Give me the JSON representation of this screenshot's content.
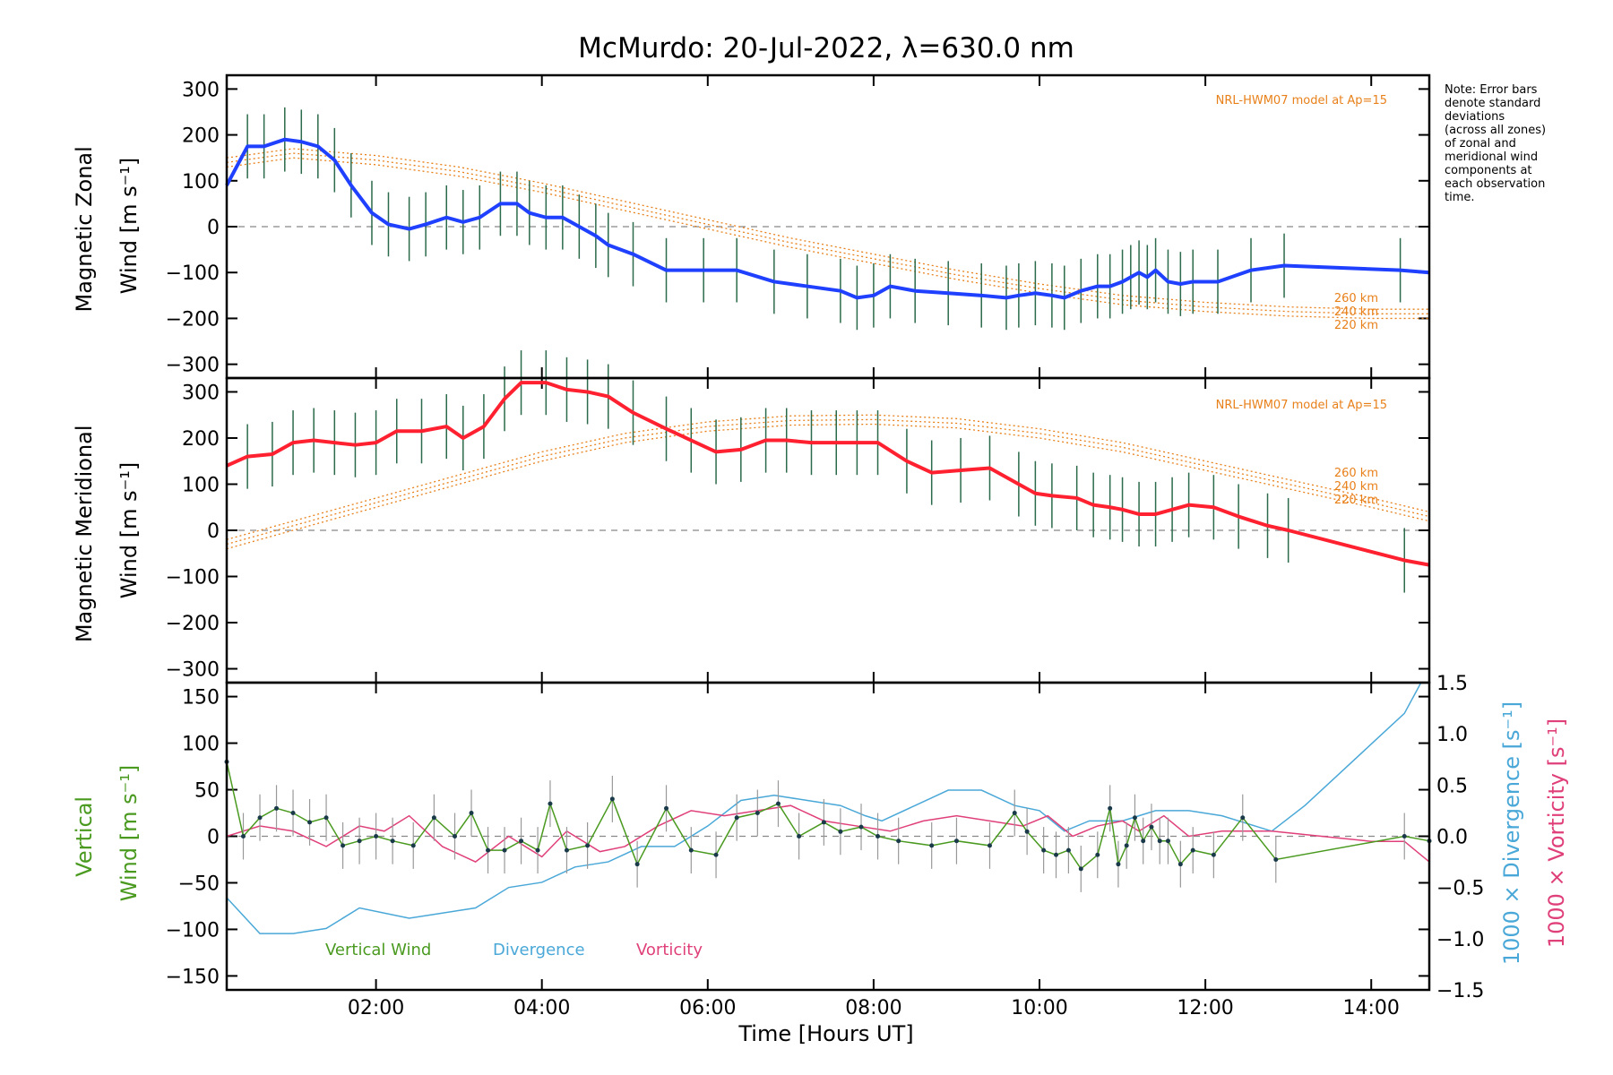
{
  "figure": {
    "title": "McMurdo: 20-Jul-2022, λ=630.0 nm",
    "note_lines": [
      "Note: Error bars",
      "denote standard",
      "deviations",
      "(across all zones)",
      "of zonal and",
      "meridional wind",
      "components at",
      "each observation",
      "time."
    ],
    "model_label": "NRL-HWM07 model at Ap=15",
    "altitudes": [
      "260 km",
      "240 km",
      "220 km"
    ],
    "xlabel": "Time [Hours UT]"
  },
  "chart_data": [
    {
      "type": "line",
      "panel": "zonal",
      "ylabel_lines": [
        "Magnetic Zonal",
        "Wind [m s⁻¹]"
      ],
      "xlim": [
        0.2,
        14.7
      ],
      "ylim": [
        -330,
        330
      ],
      "yticks": [
        300,
        200,
        100,
        0,
        -100,
        -200,
        -300
      ],
      "xticks": [
        2,
        4,
        6,
        8,
        10,
        12,
        14
      ],
      "xtick_labels": [
        "02:00",
        "04:00",
        "06:00",
        "08:00",
        "10:00",
        "12:00",
        "14:00"
      ],
      "zero_line": true,
      "colors": {
        "line": "#2040ff",
        "model": "#e8801a"
      },
      "series": [
        {
          "x": [
            0.2,
            0.45,
            0.65,
            0.9,
            1.1,
            1.3,
            1.5,
            1.7,
            1.95,
            2.15,
            2.4,
            2.6,
            2.85,
            3.05,
            3.25,
            3.5,
            3.7,
            3.85,
            4.05,
            4.25,
            4.45,
            4.65,
            4.8,
            5.1,
            5.5,
            5.95,
            6.35,
            6.8,
            7.2,
            7.6,
            7.8,
            8.0,
            8.2,
            8.5,
            8.9,
            9.3,
            9.6,
            9.75,
            9.95,
            10.15,
            10.3,
            10.5,
            10.7,
            10.85,
            11.0,
            11.1,
            11.2,
            11.3,
            11.4,
            11.55,
            11.7,
            11.85,
            12.15,
            12.55,
            12.95,
            14.35,
            14.7
          ],
          "y": [
            90,
            175,
            175,
            190,
            185,
            175,
            145,
            90,
            30,
            5,
            -5,
            5,
            20,
            10,
            20,
            50,
            50,
            30,
            20,
            20,
            0,
            -20,
            -40,
            -60,
            -95,
            -95,
            -95,
            -120,
            -130,
            -140,
            -155,
            -150,
            -130,
            -140,
            -145,
            -150,
            -155,
            -150,
            -145,
            -150,
            -155,
            -140,
            -130,
            -130,
            -120,
            -110,
            -100,
            -110,
            -95,
            -120,
            -125,
            -120,
            -120,
            -95,
            -85,
            -95,
            -100
          ]
        }
      ],
      "model": {
        "x": [
          0.2,
          1,
          2,
          3,
          4,
          5,
          6,
          7,
          8,
          9,
          10,
          11,
          12,
          13,
          14,
          14.7
        ],
        "y": [
          140,
          160,
          145,
          120,
          85,
          45,
          5,
          -35,
          -70,
          -105,
          -135,
          -160,
          -175,
          -185,
          -190,
          -190
        ]
      }
    },
    {
      "type": "line",
      "panel": "meridional",
      "ylabel_lines": [
        "Magnetic Meridional",
        "Wind [m s⁻¹]"
      ],
      "xlim": [
        0.2,
        14.7
      ],
      "ylim": [
        -330,
        330
      ],
      "yticks": [
        300,
        200,
        100,
        0,
        -100,
        -200,
        -300
      ],
      "zero_line": true,
      "colors": {
        "line": "#ff2030",
        "model": "#e8801a"
      },
      "series": [
        {
          "x": [
            0.2,
            0.45,
            0.75,
            1.0,
            1.25,
            1.5,
            1.75,
            2.0,
            2.25,
            2.55,
            2.85,
            3.05,
            3.3,
            3.55,
            3.75,
            4.05,
            4.3,
            4.55,
            4.8,
            5.1,
            5.5,
            5.8,
            6.1,
            6.4,
            6.7,
            6.95,
            7.25,
            7.55,
            7.8,
            8.05,
            8.4,
            8.7,
            9.05,
            9.4,
            9.75,
            9.95,
            10.15,
            10.45,
            10.65,
            10.85,
            11.0,
            11.2,
            11.4,
            11.6,
            11.8,
            12.1,
            12.4,
            12.75,
            13.0,
            14.4,
            14.7
          ],
          "y": [
            140,
            160,
            165,
            190,
            195,
            190,
            185,
            190,
            215,
            215,
            225,
            200,
            225,
            285,
            320,
            320,
            305,
            300,
            290,
            255,
            220,
            195,
            170,
            175,
            195,
            195,
            190,
            190,
            190,
            190,
            150,
            125,
            130,
            135,
            100,
            80,
            75,
            70,
            55,
            50,
            45,
            35,
            35,
            45,
            55,
            50,
            30,
            10,
            0,
            -65,
            -75
          ]
        }
      ],
      "model": {
        "x": [
          0.2,
          1,
          2,
          3,
          4,
          5,
          6,
          7,
          8,
          9,
          10,
          11,
          12,
          13,
          14,
          14.7
        ],
        "y": [
          -30,
          10,
          60,
          110,
          160,
          200,
          225,
          238,
          240,
          232,
          210,
          180,
          140,
          100,
          60,
          30
        ]
      }
    },
    {
      "type": "line",
      "panel": "vertical",
      "ylabel_lines": [
        "Vertical",
        "Wind [m s⁻¹]"
      ],
      "right_ylabels": [
        "1000 × Divergence [s⁻¹]",
        "1000 × Vorticity [s⁻¹]"
      ],
      "xlim": [
        0.2,
        14.7
      ],
      "ylim": [
        -165,
        165
      ],
      "yticks": [
        150,
        100,
        50,
        0,
        -50,
        -100,
        -150
      ],
      "right_ylim": [
        -1.5,
        1.5
      ],
      "right_yticks": [
        1.5,
        1.0,
        0.5,
        0.0,
        -0.5,
        -1.0,
        -1.5
      ],
      "right_ytick_labels": [
        "1.5",
        "1.0",
        "0.5",
        "0.0",
        "−0.5",
        "−1.0",
        "−1.5"
      ],
      "zero_line": true,
      "legend": [
        "Vertical Wind",
        "Divergence",
        "Vorticity"
      ],
      "colors": {
        "vertical": "#4a9a20",
        "divergence": "#4aa8d8",
        "vorticity": "#e0407a"
      },
      "series": [
        {
          "name": "Vertical Wind",
          "axis": "left",
          "x": [
            0.2,
            0.4,
            0.6,
            0.8,
            1.0,
            1.2,
            1.4,
            1.6,
            1.8,
            2.0,
            2.2,
            2.45,
            2.7,
            2.95,
            3.15,
            3.35,
            3.55,
            3.75,
            3.95,
            4.1,
            4.3,
            4.55,
            4.85,
            5.15,
            5.5,
            5.8,
            6.1,
            6.35,
            6.6,
            6.85,
            7.1,
            7.4,
            7.6,
            7.85,
            8.05,
            8.3,
            8.7,
            9.0,
            9.4,
            9.7,
            9.85,
            10.05,
            10.2,
            10.35,
            10.5,
            10.7,
            10.85,
            10.95,
            11.05,
            11.15,
            11.25,
            11.35,
            11.45,
            11.55,
            11.7,
            11.85,
            12.1,
            12.45,
            12.85,
            14.4,
            14.7
          ],
          "y": [
            80,
            0,
            20,
            30,
            25,
            15,
            20,
            -10,
            -5,
            0,
            -5,
            -10,
            20,
            0,
            25,
            -15,
            -15,
            -5,
            -15,
            35,
            -15,
            -10,
            40,
            -30,
            30,
            -15,
            -20,
            20,
            25,
            35,
            0,
            15,
            5,
            10,
            0,
            -5,
            -10,
            -5,
            -10,
            25,
            5,
            -15,
            -20,
            -15,
            -35,
            -20,
            30,
            -30,
            -10,
            20,
            -5,
            10,
            -5,
            -5,
            -30,
            -15,
            -20,
            20,
            -25,
            0,
            -5
          ]
        },
        {
          "name": "Divergence",
          "axis": "right",
          "x": [
            0.2,
            0.6,
            1.0,
            1.4,
            1.8,
            2.1,
            2.4,
            2.8,
            3.2,
            3.6,
            4.0,
            4.4,
            4.8,
            5.2,
            5.6,
            6.0,
            6.4,
            6.8,
            7.2,
            7.6,
            7.9,
            8.1,
            8.5,
            8.9,
            9.3,
            9.7,
            10.0,
            10.3,
            10.6,
            11.0,
            11.4,
            11.8,
            12.2,
            12.6,
            12.8,
            13.2,
            13.6,
            14.0,
            14.4,
            14.6
          ],
          "y": [
            -0.6,
            -0.95,
            -0.95,
            -0.9,
            -0.7,
            -0.75,
            -0.8,
            -0.75,
            -0.7,
            -0.5,
            -0.45,
            -0.3,
            -0.25,
            -0.1,
            -0.1,
            0.1,
            0.35,
            0.4,
            0.35,
            0.3,
            0.2,
            0.15,
            0.3,
            0.45,
            0.45,
            0.3,
            0.25,
            0.05,
            0.15,
            0.15,
            0.25,
            0.25,
            0.2,
            0.1,
            0.05,
            0.3,
            0.6,
            0.9,
            1.2,
            1.5
          ]
        },
        {
          "name": "Vorticity",
          "axis": "right",
          "x": [
            0.2,
            0.6,
            1.0,
            1.4,
            1.8,
            2.1,
            2.4,
            2.8,
            3.2,
            3.6,
            4.0,
            4.3,
            4.7,
            5.0,
            5.4,
            5.8,
            6.2,
            6.6,
            7.0,
            7.4,
            7.8,
            8.2,
            8.6,
            9.0,
            9.4,
            9.8,
            10.1,
            10.4,
            10.7,
            11.0,
            11.2,
            11.5,
            11.8,
            12.2,
            12.8,
            13.4,
            14.0,
            14.4,
            14.7
          ],
          "y": [
            0.0,
            0.1,
            0.05,
            -0.1,
            0.1,
            0.05,
            0.2,
            -0.1,
            -0.25,
            0.0,
            -0.2,
            0.05,
            -0.15,
            -0.1,
            0.1,
            0.25,
            0.2,
            0.25,
            0.3,
            0.15,
            0.1,
            0.05,
            0.15,
            0.2,
            0.15,
            0.1,
            0.2,
            0.0,
            0.1,
            0.15,
            0.05,
            0.2,
            0.0,
            0.05,
            0.05,
            0.0,
            -0.05,
            -0.05,
            -0.25
          ]
        }
      ]
    }
  ]
}
